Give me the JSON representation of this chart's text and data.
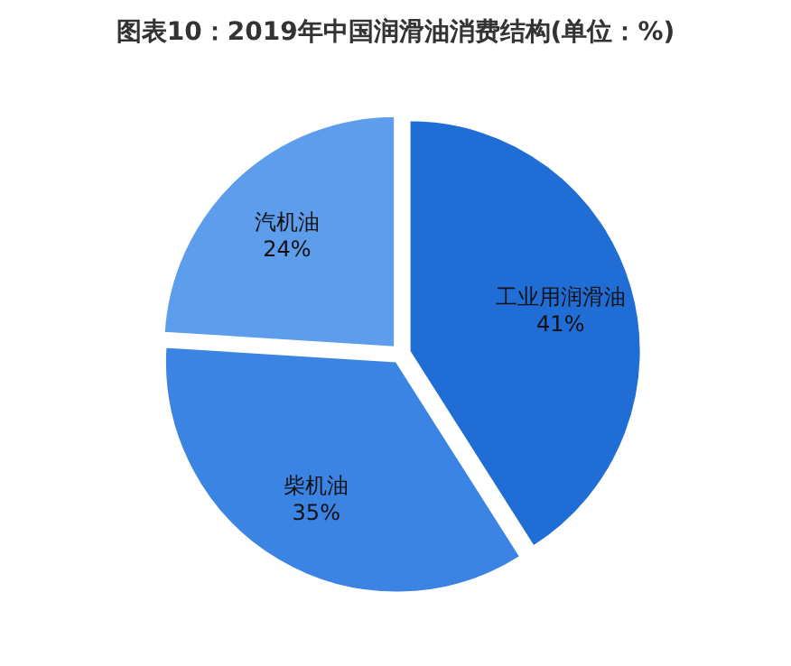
{
  "chart_data": {
    "type": "pie",
    "title": "图表10：2019年中国润滑油消费结构(单位：%)",
    "categories": [
      "工业用润滑油",
      "柴机油",
      "汽机油"
    ],
    "values": [
      41,
      35,
      24
    ],
    "colors": [
      "#1f6dd5",
      "#3c84e3",
      "#5e9deb"
    ],
    "value_labels": [
      "41%",
      "35%",
      "24%"
    ]
  }
}
